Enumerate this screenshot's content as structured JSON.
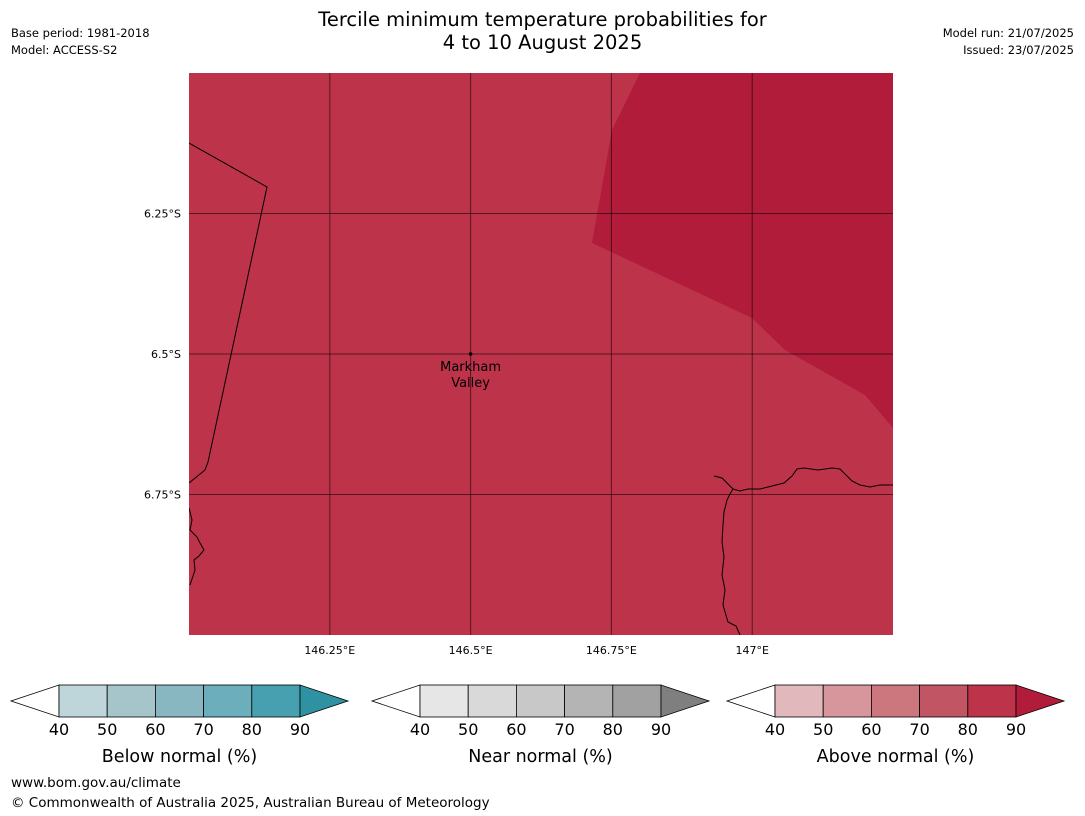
{
  "header": {
    "title_line1": "Tercile minimum temperature probabilities for",
    "title_line2": "4 to 10 August 2025",
    "base_period": "Base period: 1981-2018",
    "model": "Model: ACCESS-S2",
    "model_run": "Model run: 21/07/2025",
    "issued": "Issued: 23/07/2025"
  },
  "map": {
    "lon_range": [
      146.0,
      147.25
    ],
    "lat_range": [
      -7.0,
      -6.0
    ],
    "lon_ticks": [
      {
        "value": 146.25,
        "label": "146.25°E"
      },
      {
        "value": 146.5,
        "label": "146.5°E"
      },
      {
        "value": 146.75,
        "label": "146.75°E"
      },
      {
        "value": 147.0,
        "label": "147°E"
      }
    ],
    "lat_ticks": [
      {
        "value": -6.25,
        "label": "6.25°S"
      },
      {
        "value": -6.5,
        "label": "6.5°S"
      },
      {
        "value": -6.75,
        "label": "6.75°S"
      }
    ],
    "background_color": "#bd3349",
    "high_zone_color": "#b01c3a",
    "places": [
      {
        "name_line1": "Markham",
        "name_line2": "Valley",
        "lon": 146.5,
        "lat": -6.5
      }
    ]
  },
  "colorbars": [
    {
      "label": "Below normal (%)",
      "ticks": [
        "40",
        "50",
        "60",
        "70",
        "80",
        "90"
      ],
      "colors": [
        "#bed5da",
        "#a6c5ca",
        "#88b6c1",
        "#6caebb",
        "#46a0b0"
      ],
      "arrow_color": "#2f92a3"
    },
    {
      "label": "Near normal (%)",
      "ticks": [
        "40",
        "50",
        "60",
        "70",
        "80",
        "90"
      ],
      "colors": [
        "#e6e6e6",
        "#d9d9d9",
        "#c8c8c8",
        "#b4b4b4",
        "#a1a1a1"
      ],
      "arrow_color": "#7f7f7f"
    },
    {
      "label": "Above normal (%)",
      "ticks": [
        "40",
        "50",
        "60",
        "70",
        "80",
        "90"
      ],
      "colors": [
        "#e1b8bc",
        "#d6969c",
        "#cc767d",
        "#c25563",
        "#bd3349"
      ],
      "arrow_color": "#b01c3a"
    }
  ],
  "footer": {
    "url": "www.bom.gov.au/climate",
    "copyright": "© Commonwealth of Australia 2025, Australian Bureau of Meteorology"
  }
}
